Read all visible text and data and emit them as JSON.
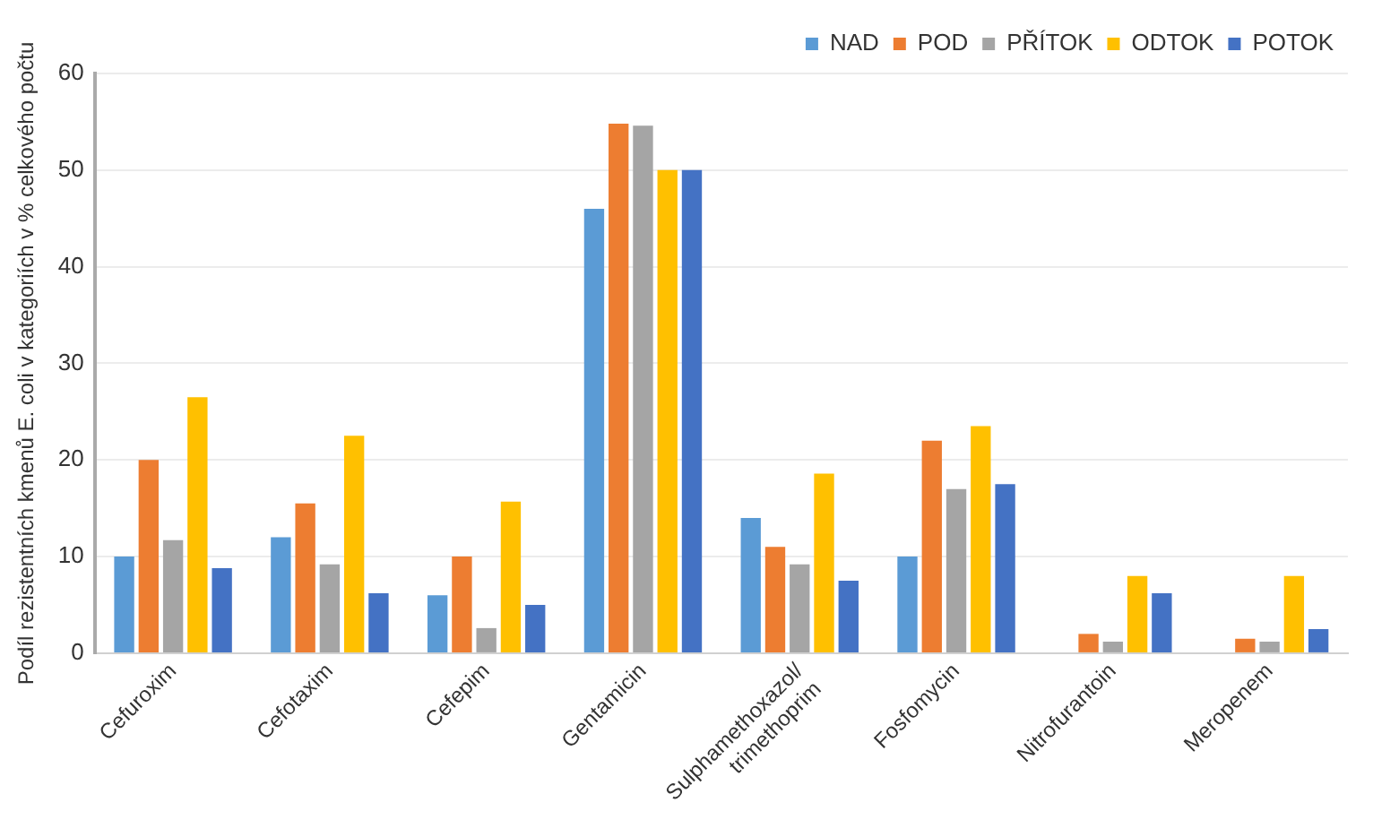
{
  "chart_data": {
    "type": "bar",
    "ylabel": "Podíl rezistentních kmenů E. coli v kategoriích v % celkového počtu",
    "categories": [
      "Cefuroxim",
      "Cefotaxim",
      "Cefepim",
      "Gentamicin",
      "Sulphamethoxazol/trimethoprim",
      "Fosfomycin",
      "Nitrofurantoin",
      "Meropenem"
    ],
    "series": [
      {
        "name": "NAD",
        "color": "#5b9bd5",
        "values": [
          10,
          12,
          6,
          46,
          14,
          10,
          0,
          0
        ]
      },
      {
        "name": "POD",
        "color": "#ed7d31",
        "values": [
          20,
          15.5,
          10,
          54.8,
          11,
          22,
          2,
          1.5
        ]
      },
      {
        "name": "PŘÍTOK",
        "color": "#a5a5a5",
        "values": [
          11.7,
          9.2,
          2.6,
          54.6,
          9.2,
          17,
          1.2,
          1.2
        ]
      },
      {
        "name": "ODTOK",
        "color": "#ffc000",
        "values": [
          26.5,
          22.5,
          15.7,
          50,
          18.6,
          23.5,
          8,
          8
        ]
      },
      {
        "name": "POTOK",
        "color": "#4472c4",
        "values": [
          8.8,
          6.2,
          5,
          50,
          7.5,
          17.5,
          6.2,
          2.5
        ]
      }
    ],
    "ylim": [
      0,
      60
    ],
    "yticks": [
      0,
      10,
      20,
      30,
      40,
      50,
      60
    ],
    "grid": "y",
    "legend": "top right"
  }
}
